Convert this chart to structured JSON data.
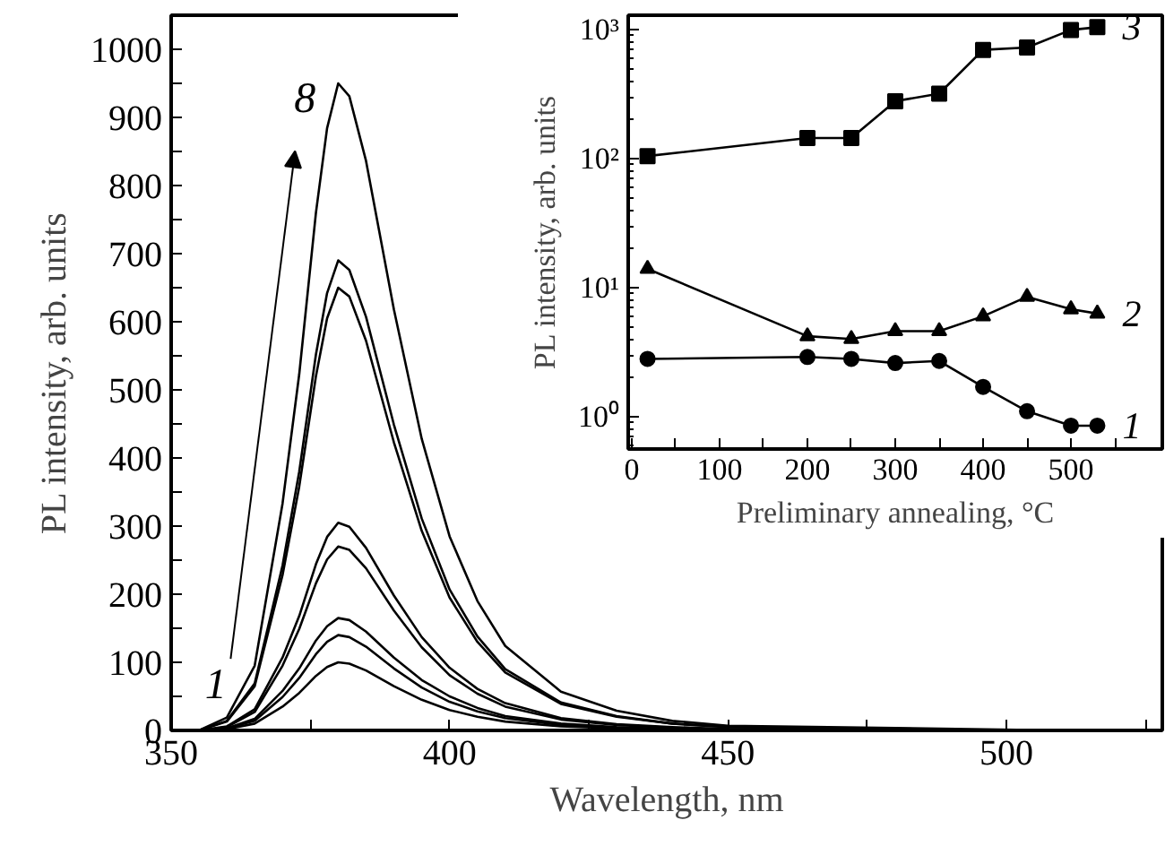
{
  "chart_data": [
    {
      "type": "line",
      "xlabel": "Wavelength, nm",
      "ylabel": "PL intensity, arb. units",
      "xlim": [
        350,
        528
      ],
      "ylim": [
        0,
        1050
      ],
      "xticks": [
        350,
        {
          "value": 375,
          "label": null
        },
        400,
        {
          "value": 425,
          "label": null
        },
        450,
        {
          "value": 475,
          "label": null
        },
        500,
        {
          "value": 525,
          "label": null
        }
      ],
      "yticks": [
        0,
        {
          "value": 50,
          "label": null
        },
        100,
        {
          "value": 150,
          "label": null
        },
        200,
        {
          "value": 250,
          "label": null
        },
        300,
        {
          "value": 350,
          "label": null
        },
        400,
        {
          "value": 450,
          "label": null
        },
        500,
        {
          "value": 550,
          "label": null
        },
        600,
        {
          "value": 650,
          "label": null
        },
        700,
        {
          "value": 750,
          "label": null
        },
        800,
        {
          "value": 850,
          "label": null
        },
        900,
        {
          "value": 950,
          "label": null
        },
        1000
      ],
      "series": [
        {
          "color": "#000000",
          "x": [
            355,
            360,
            365,
            370,
            373,
            376,
            378,
            380,
            382,
            385,
            390,
            395,
            400,
            405,
            410,
            420,
            430,
            440,
            450,
            460
          ],
          "values": [
            0,
            2,
            10,
            35,
            55,
            80,
            93,
            100,
            98,
            88,
            65,
            45,
            30,
            20,
            13,
            6,
            3,
            2,
            1,
            0
          ]
        },
        {
          "color": "#000000",
          "x": [
            355,
            360,
            365,
            370,
            373,
            376,
            378,
            380,
            382,
            385,
            390,
            395,
            400,
            405,
            410,
            420,
            430,
            440,
            450,
            465
          ],
          "values": [
            0,
            3,
            14,
            49,
            77,
            112,
            130,
            140,
            137,
            123,
            91,
            63,
            42,
            28,
            18,
            8,
            4,
            2,
            1,
            0
          ]
        },
        {
          "color": "#000000",
          "x": [
            355,
            360,
            365,
            370,
            373,
            376,
            378,
            380,
            382,
            385,
            390,
            395,
            400,
            405,
            410,
            420,
            430,
            440,
            450,
            470
          ],
          "values": [
            0,
            3,
            17,
            58,
            91,
            132,
            153,
            165,
            162,
            145,
            107,
            74,
            50,
            33,
            21,
            10,
            5,
            2,
            1,
            0
          ]
        },
        {
          "color": "#000000",
          "x": [
            355,
            360,
            365,
            370,
            373,
            376,
            378,
            380,
            382,
            385,
            390,
            395,
            400,
            405,
            410,
            420,
            430,
            440,
            450,
            475
          ],
          "values": [
            0,
            5,
            27,
            95,
            149,
            216,
            251,
            270,
            265,
            238,
            176,
            122,
            81,
            54,
            35,
            16,
            8,
            4,
            2,
            0
          ]
        },
        {
          "color": "#000000",
          "x": [
            355,
            360,
            365,
            370,
            373,
            376,
            378,
            380,
            382,
            385,
            390,
            395,
            400,
            405,
            410,
            420,
            430,
            440,
            450,
            480
          ],
          "values": [
            0,
            6,
            31,
            107,
            168,
            244,
            284,
            305,
            299,
            268,
            198,
            137,
            92,
            61,
            40,
            18,
            9,
            5,
            2,
            0
          ]
        },
        {
          "color": "#000000",
          "x": [
            355,
            360,
            365,
            370,
            373,
            376,
            378,
            380,
            382,
            385,
            390,
            395,
            400,
            405,
            410,
            420,
            430,
            440,
            450,
            490
          ],
          "values": [
            0,
            13,
            65,
            228,
            358,
            520,
            605,
            650,
            637,
            572,
            423,
            293,
            195,
            130,
            85,
            39,
            20,
            10,
            5,
            0
          ]
        },
        {
          "color": "#000000",
          "x": [
            355,
            360,
            365,
            370,
            373,
            376,
            378,
            380,
            382,
            385,
            390,
            395,
            400,
            405,
            410,
            420,
            430,
            440,
            450,
            495
          ],
          "values": [
            0,
            14,
            69,
            242,
            380,
            552,
            642,
            690,
            676,
            607,
            449,
            311,
            207,
            138,
            90,
            41,
            21,
            10,
            5,
            0
          ]
        },
        {
          "color": "#000000",
          "x": [
            355,
            360,
            365,
            370,
            373,
            376,
            378,
            380,
            382,
            385,
            390,
            395,
            400,
            405,
            410,
            420,
            430,
            440,
            450,
            510
          ],
          "values": [
            0,
            19,
            95,
            333,
            523,
            760,
            884,
            950,
            931,
            836,
            618,
            428,
            285,
            190,
            124,
            57,
            29,
            14,
            7,
            0
          ]
        }
      ],
      "annotations": [
        "1",
        "8"
      ],
      "grid": false,
      "legend": false
    },
    {
      "type": "line",
      "xlabel": "Preliminary annealing, °C",
      "ylabel": "PL intensity, arb. units",
      "log": "y",
      "x": [
        18,
        200,
        250,
        300,
        350,
        400,
        450,
        500,
        530
      ],
      "legend": "right",
      "xlim": [
        -4,
        604
      ],
      "ylim": [
        0.56,
        1300
      ],
      "xticks": [
        0,
        {
          "value": 50,
          "label": null
        },
        100,
        {
          "value": 150,
          "label": null
        },
        200,
        {
          "value": 250,
          "label": null
        },
        300,
        {
          "value": 350,
          "label": null
        },
        400,
        {
          "value": 450,
          "label": null
        },
        500,
        {
          "value": 550,
          "label": null
        }
      ],
      "yticks": [
        {
          "value": 1,
          "label": "10⁰"
        },
        {
          "value": 10,
          "label": "10¹"
        },
        {
          "value": 100,
          "label": "10²"
        },
        {
          "value": 1000,
          "label": "10³"
        }
      ],
      "series": [
        {
          "name": "1",
          "color": "#000000",
          "marker": "circle",
          "values": [
            2.8,
            2.9,
            2.8,
            2.6,
            2.7,
            1.7,
            1.1,
            0.85,
            0.85
          ]
        },
        {
          "name": "2",
          "color": "#000000",
          "marker": "triangle",
          "values": [
            14,
            4.2,
            4.0,
            4.6,
            4.6,
            6,
            8.5,
            6.8,
            6.3
          ]
        },
        {
          "name": "3",
          "color": "#000000",
          "marker": "square",
          "values": [
            105,
            145,
            145,
            280,
            320,
            700,
            730,
            1000,
            1050
          ]
        }
      ],
      "grid": false
    }
  ]
}
